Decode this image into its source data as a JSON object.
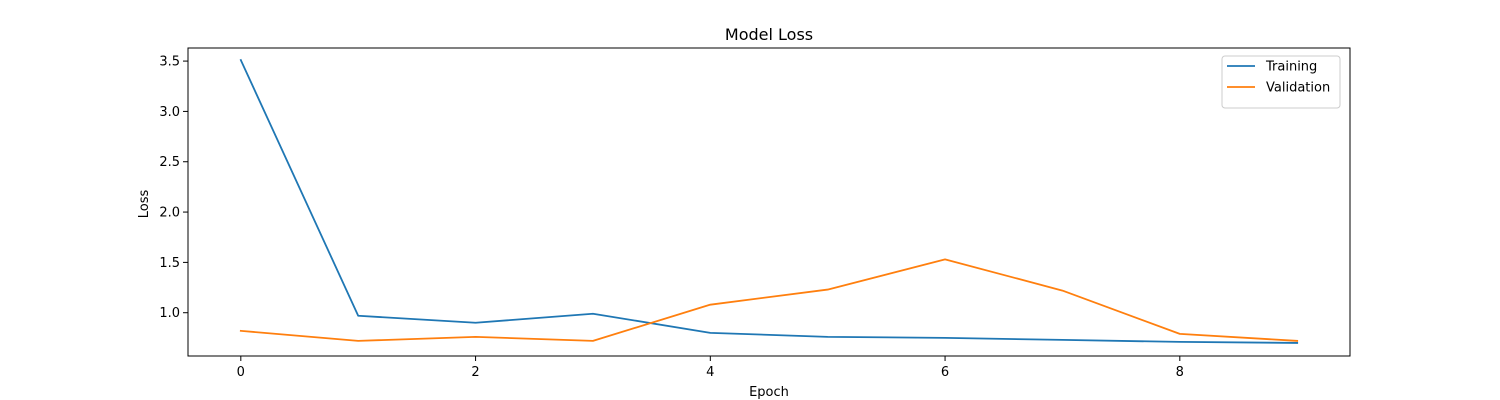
{
  "chart_data": {
    "type": "line",
    "title": "Model Loss",
    "xlabel": "Epoch",
    "ylabel": "Loss",
    "x": [
      0,
      1,
      2,
      3,
      4,
      5,
      6,
      7,
      8,
      9
    ],
    "xticks": [
      0,
      2,
      4,
      6,
      8
    ],
    "yticks": [
      1.0,
      1.5,
      2.0,
      2.5,
      3.0,
      3.5
    ],
    "xlim": [
      -0.45,
      9.45
    ],
    "ylim": [
      0.57,
      3.63
    ],
    "grid": false,
    "legend_position": "top-right",
    "series": [
      {
        "name": "Training",
        "color": "#1f77b4",
        "values": [
          3.51,
          0.97,
          0.9,
          0.99,
          0.8,
          0.76,
          0.75,
          0.73,
          0.71,
          0.7
        ]
      },
      {
        "name": "Validation",
        "color": "#ff7f0e",
        "values": [
          0.82,
          0.72,
          0.76,
          0.72,
          1.08,
          1.23,
          1.53,
          1.22,
          0.79,
          0.72
        ]
      }
    ]
  }
}
